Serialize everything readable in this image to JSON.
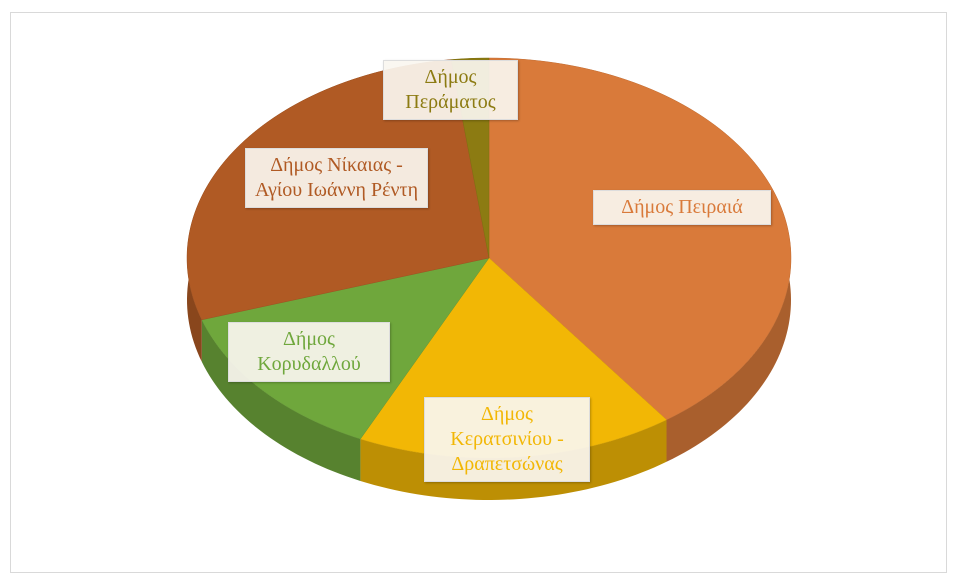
{
  "chart_data": {
    "type": "pie3d",
    "categories": [
      "Δήμος Πειραιά",
      "Δήμος Κερατσινίου - Δραπετσώνας",
      "Δήμος Κορυδαλλού",
      "Δήμος Νίκαιας - Αγίου Ιωάννη Ρέντη",
      "Δήμος Περάματος"
    ],
    "values": [
      40,
      17,
      13,
      28,
      2
    ],
    "colors": [
      "#d97a3a",
      "#f2b705",
      "#6fa73c",
      "#b05a24",
      "#8c7b12"
    ]
  }
}
